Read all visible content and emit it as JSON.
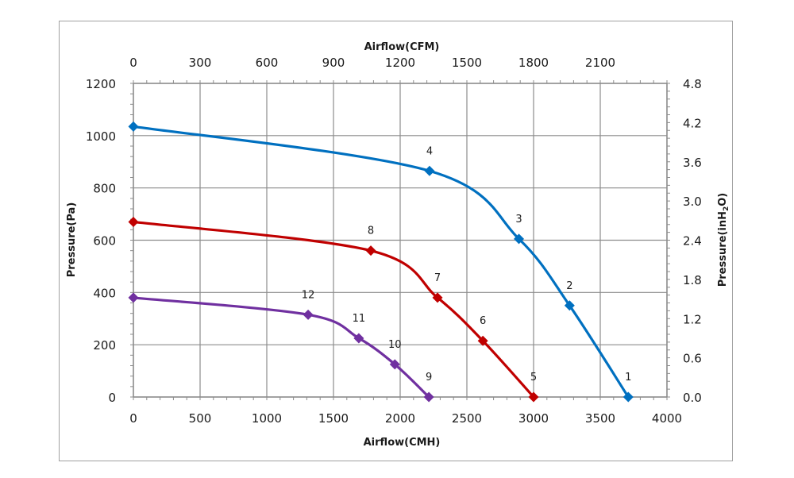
{
  "chart_data": {
    "type": "line",
    "title": "",
    "xlabel": "Airflow(CMH)",
    "x2label": "Airflow(CFM)",
    "ylabel": "Pressure(Pa)",
    "y2label": "Pressure(inH2O)",
    "xlim": [
      0,
      4000
    ],
    "ylim": [
      0,
      1200
    ],
    "y2lim": [
      0.0,
      4.8
    ],
    "x_ticks": [
      "0",
      "500",
      "1000",
      "1500",
      "2000",
      "2500",
      "3000",
      "3500",
      "4000"
    ],
    "x2_ticks": [
      "0",
      "300",
      "600",
      "900",
      "1200",
      "1500",
      "1800",
      "2100"
    ],
    "y_ticks": [
      "0",
      "200",
      "400",
      "600",
      "800",
      "1000",
      "1200"
    ],
    "y2_ticks": [
      "0.0",
      "0.6",
      "1.2",
      "1.8",
      "2.4",
      "3.0",
      "3.6",
      "4.2",
      "4.8"
    ],
    "grid": true,
    "legend": "none",
    "series": [
      {
        "name": "curve-blue",
        "color": "#0070c0",
        "points": [
          {
            "x": 0,
            "y": 1035,
            "label": ""
          },
          {
            "x": 2220,
            "y": 865,
            "label": "4"
          },
          {
            "x": 2890,
            "y": 605,
            "label": "3"
          },
          {
            "x": 3270,
            "y": 350,
            "label": "2"
          },
          {
            "x": 3710,
            "y": 0,
            "label": "1"
          }
        ]
      },
      {
        "name": "curve-red",
        "color": "#c00000",
        "points": [
          {
            "x": 0,
            "y": 670,
            "label": ""
          },
          {
            "x": 1780,
            "y": 560,
            "label": "8"
          },
          {
            "x": 2280,
            "y": 380,
            "label": "7"
          },
          {
            "x": 2620,
            "y": 215,
            "label": "6"
          },
          {
            "x": 3000,
            "y": 0,
            "label": "5"
          }
        ]
      },
      {
        "name": "curve-purple",
        "color": "#7030a0",
        "points": [
          {
            "x": 0,
            "y": 380,
            "label": ""
          },
          {
            "x": 1310,
            "y": 315,
            "label": "12"
          },
          {
            "x": 1690,
            "y": 225,
            "label": "11"
          },
          {
            "x": 1960,
            "y": 125,
            "label": "10"
          },
          {
            "x": 2215,
            "y": 0,
            "label": "9"
          }
        ]
      }
    ]
  },
  "colors": {
    "grid": "#8c8c8c",
    "axis": "#8c8c8c",
    "frame": "#a0a0a0"
  }
}
